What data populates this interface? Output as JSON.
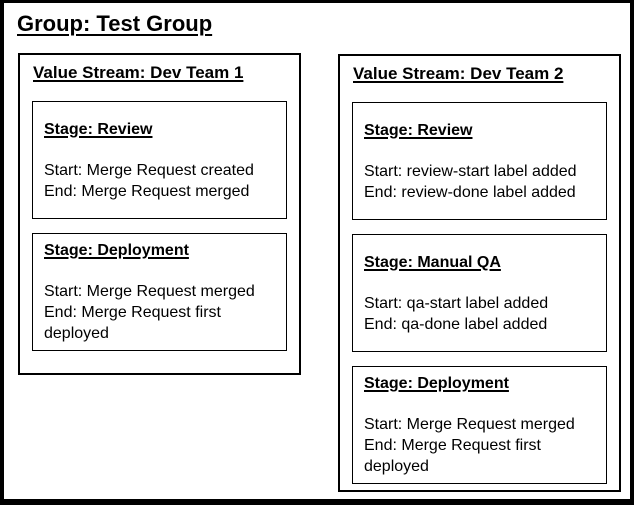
{
  "group": {
    "title": "Group: Test Group"
  },
  "value_streams": [
    {
      "title": "Value Stream: Dev Team 1",
      "stages": [
        {
          "title": "Stage: Review",
          "start": "Start: Merge Request created",
          "end": "End: Merge Request merged"
        },
        {
          "title": "Stage: Deployment",
          "start": "Start: Merge Request merged",
          "end": "End: Merge Request first deployed"
        }
      ]
    },
    {
      "title": "Value Stream: Dev Team 2",
      "stages": [
        {
          "title": "Stage: Review",
          "start": "Start: review-start label added",
          "end": "End: review-done label added"
        },
        {
          "title": "Stage: Manual QA",
          "start": "Start: qa-start label added",
          "end": "End: qa-done label added"
        },
        {
          "title": "Stage: Deployment",
          "start": "Start: Merge Request merged",
          "end": "End: Merge Request first deployed"
        }
      ]
    }
  ],
  "colors": {
    "frame_border": "#000000",
    "box_border": "#000000",
    "text": "#000000",
    "background": "#ffffff"
  }
}
